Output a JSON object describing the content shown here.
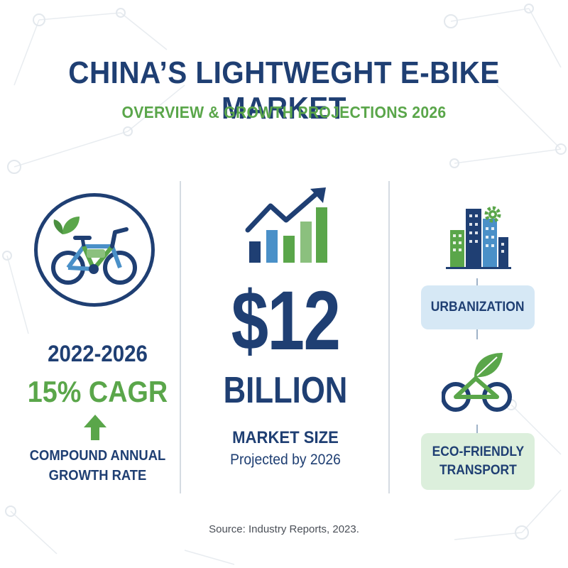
{
  "header": {
    "title": "CHINA’S LIGHTWEGHT E-BIKE MARKET",
    "subtitle": "OVERVIEW & GROWTH PROJECTIONS 2026"
  },
  "growth": {
    "years": "2022-2026",
    "cagr": "15% CAGR",
    "description_line1": "COMPOUND ANNUAL",
    "description_line2": "GROWTH RATE"
  },
  "market": {
    "value": "$12",
    "unit": "BILLION",
    "label": "MARKET SIZE",
    "note": "Projected by 2026"
  },
  "drivers": [
    {
      "label": "URBANIZATION"
    },
    {
      "label_line1": "ECO-FRIENDLY",
      "label_line2": "TRANSPORT"
    }
  ],
  "footer": {
    "source": "Source: Industry Reports, 2023."
  },
  "icons": {
    "bike": "bicycle-leaf-icon",
    "growth": "bar-chart-arrow-icon",
    "arrow": "arrow-up-icon",
    "city": "city-buildings-gear-icon",
    "eco": "eco-bike-leaf-icon"
  },
  "colors": {
    "navy": "#1f3f73",
    "green": "#5aa64a",
    "light_blue": "#4a90c8",
    "urban_pill": "#d6e8f5",
    "eco_pill": "#dcefdc"
  }
}
